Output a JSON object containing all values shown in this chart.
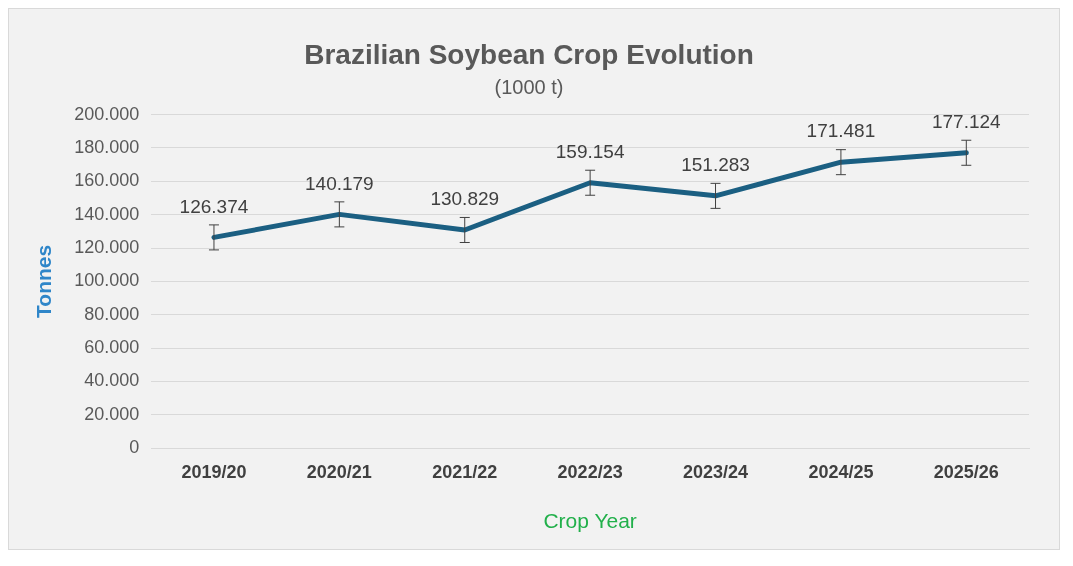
{
  "chart_data": {
    "type": "line",
    "title": "Brazilian Soybean Crop Evolution",
    "subtitle": "(1000 t)",
    "xlabel": "Crop Year",
    "ylabel": "Tonnes",
    "categories": [
      "2019/20",
      "2020/21",
      "2021/22",
      "2022/23",
      "2023/24",
      "2024/25",
      "2025/26"
    ],
    "series": [
      {
        "color": "#1b5f82",
        "values": [
          126374,
          140179,
          130829,
          159154,
          151283,
          171481,
          177124
        ],
        "errors": [
          7500,
          7500,
          7500,
          7500,
          7500,
          7500,
          7500
        ],
        "value_labels": [
          "126.374",
          "140.179",
          "130.829",
          "159.154",
          "151.283",
          "171.481",
          "177.124"
        ]
      }
    ],
    "ylim": [
      0,
      200000
    ],
    "yticks": [
      {
        "value": 0,
        "label": "0"
      },
      {
        "value": 20000,
        "label": "20.000"
      },
      {
        "value": 40000,
        "label": "40.000"
      },
      {
        "value": 60000,
        "label": "60.000"
      },
      {
        "value": 80000,
        "label": "80.000"
      },
      {
        "value": 100000,
        "label": "100.000"
      },
      {
        "value": 120000,
        "label": "120.000"
      },
      {
        "value": 140000,
        "label": "140.000"
      },
      {
        "value": 160000,
        "label": "160.000"
      },
      {
        "value": 180000,
        "label": "180.000"
      },
      {
        "value": 200000,
        "label": "200.000"
      }
    ],
    "grid": "y",
    "legend": false,
    "marker": "none",
    "line_style": "solid"
  }
}
